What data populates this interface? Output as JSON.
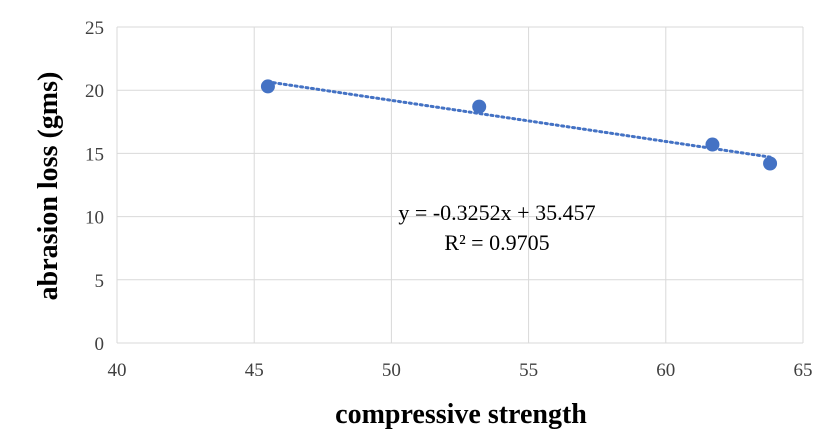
{
  "chart_data": {
    "type": "scatter",
    "xlabel": "compressive strength",
    "ylabel": "abrasion loss (gms)",
    "xlim": [
      40,
      65
    ],
    "ylim": [
      0,
      25
    ],
    "xticks": [
      "40",
      "45",
      "50",
      "55",
      "60",
      "65"
    ],
    "yticks": [
      "0",
      "5",
      "10",
      "15",
      "20",
      "25"
    ],
    "grid": true,
    "series": [
      {
        "x": [
          45.5,
          53.2,
          61.7,
          63.8
        ],
        "y": [
          20.3,
          18.7,
          15.7,
          14.2
        ],
        "color": "#4472C4"
      }
    ],
    "trendline": {
      "type": "linear",
      "slope": -0.3252,
      "intercept": 35.457,
      "x_range": [
        45.5,
        63.8
      ],
      "style": "dotted",
      "color": "#4472C4",
      "equation_label": "y = -0.3252x + 35.457",
      "r2_label": "R² = 0.9705"
    }
  }
}
